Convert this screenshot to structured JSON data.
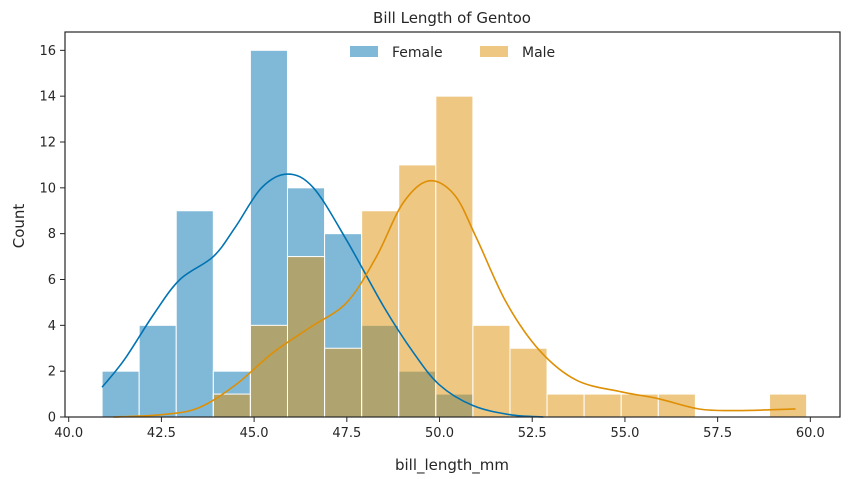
{
  "chart_data": {
    "type": "bar",
    "title": "Bill Length of Gentoo",
    "xlabel": "bill_length_mm",
    "ylabel": "Count",
    "xlim": [
      39.9,
      60.8
    ],
    "ylim": [
      0,
      16.8
    ],
    "xticks": [
      40.0,
      42.5,
      45.0,
      47.5,
      50.0,
      52.5,
      55.0,
      57.5,
      60.0
    ],
    "xtick_labels": [
      "40.0",
      "42.5",
      "45.0",
      "47.5",
      "50.0",
      "52.5",
      "55.0",
      "57.5",
      "60.0"
    ],
    "yticks": [
      0,
      2,
      4,
      6,
      8,
      10,
      12,
      14,
      16
    ],
    "ytick_labels": [
      "0",
      "2",
      "4",
      "6",
      "8",
      "10",
      "12",
      "14",
      "16"
    ],
    "bin_edges": [
      40.9,
      41.9,
      42.9,
      43.9,
      44.9,
      45.9,
      46.9,
      47.9,
      48.9,
      49.9,
      50.9,
      51.9,
      52.9,
      53.9,
      54.9,
      55.9,
      56.9,
      57.9,
      58.9,
      59.9
    ],
    "grid": false,
    "legend_position": "top-center",
    "series": [
      {
        "name": "Female",
        "color": "#0173b2",
        "counts": [
          2,
          4,
          9,
          2,
          16,
          10,
          8,
          4,
          2,
          1,
          0,
          0,
          0,
          0,
          0,
          0,
          0,
          0,
          0
        ],
        "kde": [
          [
            40.9,
            1.3
          ],
          [
            41.5,
            2.5
          ],
          [
            42.3,
            4.5
          ],
          [
            43.0,
            6.0
          ],
          [
            43.9,
            7.0
          ],
          [
            44.5,
            8.3
          ],
          [
            45.2,
            10.0
          ],
          [
            45.9,
            10.6
          ],
          [
            46.6,
            10.0
          ],
          [
            47.5,
            7.7
          ],
          [
            48.5,
            4.8
          ],
          [
            49.3,
            2.8
          ],
          [
            50.0,
            1.4
          ],
          [
            50.9,
            0.5
          ],
          [
            51.9,
            0.1
          ],
          [
            52.8,
            0.0
          ]
        ]
      },
      {
        "name": "Male",
        "color": "#de8f05",
        "counts": [
          0,
          0,
          0,
          1,
          4,
          7,
          3,
          9,
          11,
          14,
          4,
          3,
          1,
          1,
          1,
          1,
          0,
          0,
          1
        ],
        "kde": [
          [
            41.2,
            0.0
          ],
          [
            42.5,
            0.1
          ],
          [
            43.5,
            0.4
          ],
          [
            44.5,
            1.4
          ],
          [
            45.5,
            2.8
          ],
          [
            46.5,
            3.9
          ],
          [
            47.5,
            5.0
          ],
          [
            48.3,
            7.0
          ],
          [
            49.0,
            9.3
          ],
          [
            49.7,
            10.3
          ],
          [
            50.4,
            9.7
          ],
          [
            51.0,
            7.8
          ],
          [
            51.8,
            5.0
          ],
          [
            52.7,
            2.9
          ],
          [
            53.7,
            1.6
          ],
          [
            54.9,
            1.1
          ],
          [
            55.9,
            0.8
          ],
          [
            57.0,
            0.35
          ],
          [
            58.0,
            0.28
          ],
          [
            59.0,
            0.32
          ],
          [
            59.6,
            0.35
          ]
        ]
      }
    ]
  }
}
